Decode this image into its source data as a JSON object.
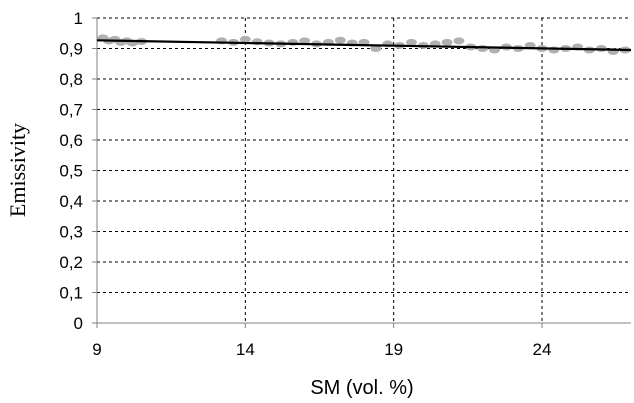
{
  "chart_data": {
    "type": "scatter",
    "title": "",
    "xlabel": "SM (vol. %)",
    "ylabel": "Emissivity",
    "xlim": [
      9,
      27
    ],
    "ylim": [
      0,
      1
    ],
    "x_ticks": [
      9,
      14,
      19,
      24
    ],
    "x_tick_labels": [
      "9",
      "14",
      "19",
      "24"
    ],
    "y_ticks": [
      0,
      0.1,
      0.2,
      0.3,
      0.4,
      0.5,
      0.6,
      0.7,
      0.8,
      0.9,
      1
    ],
    "y_tick_labels": [
      "0",
      "0,1",
      "0,2",
      "0,3",
      "0,4",
      "0,5",
      "0,6",
      "0,7",
      "0,8",
      "0,9",
      "1"
    ],
    "grid": true,
    "legend": "none",
    "colors": {
      "observed": "#b0b0b0",
      "fit": "#000000",
      "grid": "#000000",
      "axis": "#808080"
    },
    "series": [
      {
        "type": "scatter",
        "x": [
          9.2,
          9.4,
          9.6,
          9.8,
          10.0,
          10.2,
          10.5,
          13.2,
          13.6,
          14.0,
          14.4,
          14.8,
          15.2,
          15.6,
          16.0,
          16.4,
          16.8,
          17.2,
          17.6,
          18.0,
          18.4,
          18.8,
          19.2,
          19.6,
          20.0,
          20.4,
          20.8,
          21.2,
          21.6,
          22.0,
          22.4,
          22.8,
          23.2,
          23.6,
          24.0,
          24.4,
          24.8,
          25.2,
          25.6,
          26.0,
          26.4,
          26.8
        ],
        "y": [
          0.935,
          0.925,
          0.93,
          0.92,
          0.925,
          0.918,
          0.923,
          0.925,
          0.92,
          0.93,
          0.922,
          0.918,
          0.915,
          0.92,
          0.925,
          0.915,
          0.92,
          0.927,
          0.918,
          0.92,
          0.9,
          0.915,
          0.91,
          0.92,
          0.91,
          0.915,
          0.92,
          0.925,
          0.905,
          0.9,
          0.895,
          0.905,
          0.9,
          0.91,
          0.9,
          0.895,
          0.9,
          0.905,
          0.895,
          0.9,
          0.89,
          0.895
        ]
      },
      {
        "type": "line",
        "x": [
          9.0,
          27.0
        ],
        "y": [
          0.927,
          0.895
        ]
      }
    ]
  }
}
